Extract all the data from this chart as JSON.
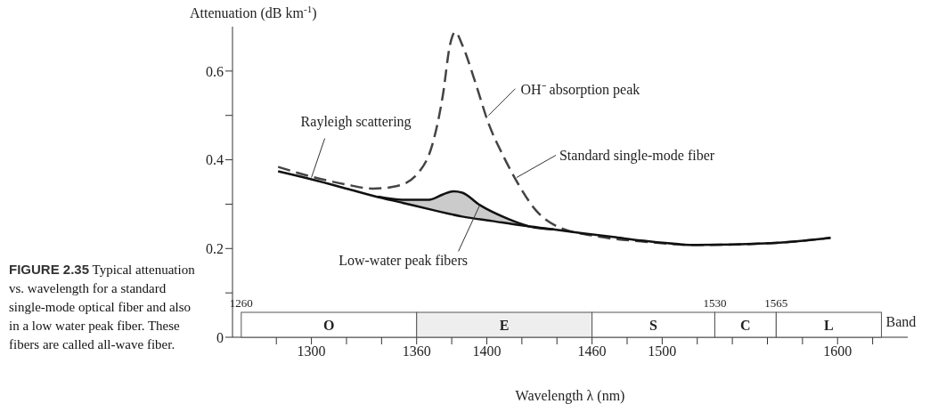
{
  "chart_data": {
    "type": "line",
    "title": "FIGURE 2.35",
    "subtitle": "Typical attenuation vs. wavelength for a standard single-mode optical fiber and also in a low water peak fiber. These fibers are called all-wave fiber.",
    "xlabel": "Wavelength λ (nm)",
    "ylabel": "Attenuation (dB km$^{-1}$)",
    "xlim": [
      1255,
      1640
    ],
    "ylim": [
      0,
      0.7
    ],
    "xticks": [
      {
        "value": 1280,
        "label": null
      },
      1300,
      {
        "value": 1320,
        "label": null
      },
      {
        "value": 1340,
        "label": null
      },
      1360,
      {
        "value": 1380,
        "label": null
      },
      1400,
      {
        "value": 1420,
        "label": null
      },
      {
        "value": 1440,
        "label": null
      },
      1460,
      {
        "value": 1480,
        "label": null
      },
      1500,
      {
        "value": 1520,
        "label": null
      },
      {
        "value": 1540,
        "label": null
      },
      {
        "value": 1560,
        "label": null
      },
      {
        "value": 1580,
        "label": null
      },
      1600,
      {
        "value": 1620,
        "label": null
      }
    ],
    "yticks": [
      0,
      {
        "value": 0.1,
        "label": null
      },
      0.2,
      {
        "value": 0.3,
        "label": null
      },
      0.4,
      {
        "value": 0.5,
        "label": null
      },
      0.6
    ],
    "marker": "none",
    "series": [
      {
        "color": "#444444",
        "line_style": "dashed",
        "x": [
          1281,
          1301,
          1319,
          1335,
          1349,
          1361,
          1369,
          1375,
          1379,
          1382,
          1386,
          1393,
          1401,
          1410,
          1418,
          1428,
          1440,
          1462,
          1488,
          1520,
          1562,
          1596
        ],
        "values": [
          0.384,
          0.361,
          0.345,
          0.335,
          0.341,
          0.371,
          0.435,
          0.547,
          0.659,
          0.688,
          0.659,
          0.58,
          0.482,
          0.404,
          0.345,
          0.286,
          0.25,
          0.228,
          0.216,
          0.208,
          0.212,
          0.224
        ]
      },
      {
        "color": "#111111",
        "line_style": "solid",
        "x": [
          1281,
          1301,
          1320,
          1336,
          1352,
          1370,
          1386,
          1403,
          1420,
          1438,
          1455,
          1472,
          1488,
          1520,
          1562,
          1596
        ],
        "values": [
          0.374,
          0.355,
          0.335,
          0.318,
          0.303,
          0.286,
          0.272,
          0.262,
          0.252,
          0.243,
          0.234,
          0.226,
          0.218,
          0.208,
          0.212,
          0.224
        ]
      },
      {
        "color": "#111111",
        "line_style": "solid",
        "x": [
          1338,
          1352,
          1367,
          1375,
          1381,
          1386,
          1396,
          1412,
          1425,
          1438
        ],
        "values": [
          0.317,
          0.31,
          0.31,
          0.322,
          0.329,
          0.326,
          0.298,
          0.267,
          0.249,
          0.243
        ],
        "lower": [
          0.317,
          0.303,
          0.287,
          0.28,
          0.275,
          0.272,
          0.266,
          0.256,
          0.249,
          0.243
        ],
        "upper": [
          0.317,
          0.31,
          0.31,
          0.322,
          0.329,
          0.326,
          0.298,
          0.267,
          0.249,
          0.243
        ]
      }
    ],
    "bands": [
      {
        "axis": "x",
        "from": 1260,
        "to": 1360,
        "label": "O",
        "color": "#ffffff"
      },
      {
        "axis": "x",
        "from": 1360,
        "to": 1460,
        "label": "E",
        "color": "#eeeeee"
      },
      {
        "axis": "x",
        "from": 1460,
        "to": 1530,
        "label": "S",
        "color": "#ffffff"
      },
      {
        "axis": "x",
        "from": 1530,
        "to": 1565,
        "label": "C",
        "color": "#ffffff"
      },
      {
        "axis": "x",
        "from": 1565,
        "to": 1625,
        "label": "L",
        "color": "#ffffff"
      }
    ],
    "annotations": [
      {
        "text": "Rayleigh scattering",
        "x": 1300,
        "y": 0.36
      },
      {
        "text": "OH⁻ absorption peak",
        "x": 1401,
        "y": 0.5
      },
      {
        "text": "Standard single-mode fiber",
        "x": 1417,
        "y": 0.36
      },
      {
        "text": "Low-water peak fibers",
        "x": 1396,
        "y": 0.298
      },
      {
        "text": "1260",
        "x": 1260,
        "y": 0
      },
      {
        "text": "1530",
        "x": 1530,
        "y": 0
      },
      {
        "text": "1565",
        "x": 1565,
        "y": 0
      },
      "Band"
    ]
  }
}
